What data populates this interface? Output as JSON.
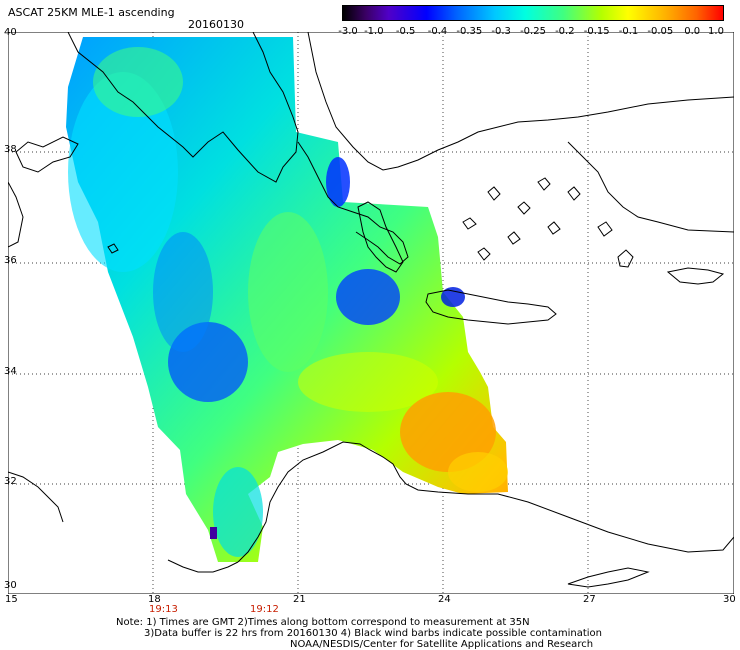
{
  "header": {
    "title": "ASCAT 25KM MLE-1 ascending",
    "date": "20160130"
  },
  "colorbar": {
    "labels": [
      "-3.0",
      "-1.0",
      "-0.5",
      "-0.4",
      "-0.35",
      "-0.3",
      "-0.25",
      "-0.2",
      "-0.15",
      "-0.1",
      "-0.05",
      "0.0",
      "1.0"
    ],
    "colors": [
      "#000000",
      "#5000c8",
      "#0000ff",
      "#0064ff",
      "#00c8ff",
      "#00ffe0",
      "#40ff80",
      "#b4ff00",
      "#ffff00",
      "#ffb000",
      "#ff6400",
      "#ff0000"
    ]
  },
  "axes": {
    "lat_labels": [
      "40",
      "38",
      "36",
      "34",
      "32",
      "30"
    ],
    "lon_labels": [
      "15",
      "18",
      "21",
      "24",
      "27",
      "30"
    ],
    "lat_range": [
      30,
      40
    ],
    "lon_range": [
      15,
      30
    ]
  },
  "times": [
    "19:13",
    "19:12"
  ],
  "notes": [
    "Note: 1) Times are GMT 2)Times along bottom correspond to measurement at 35N",
    "3)Data buffer is 22 hrs from 20160130 4) Black wind barbs indicate possible contamination",
    "NOAA/NESDIS/Center for Satellite Applications and Research"
  ]
}
